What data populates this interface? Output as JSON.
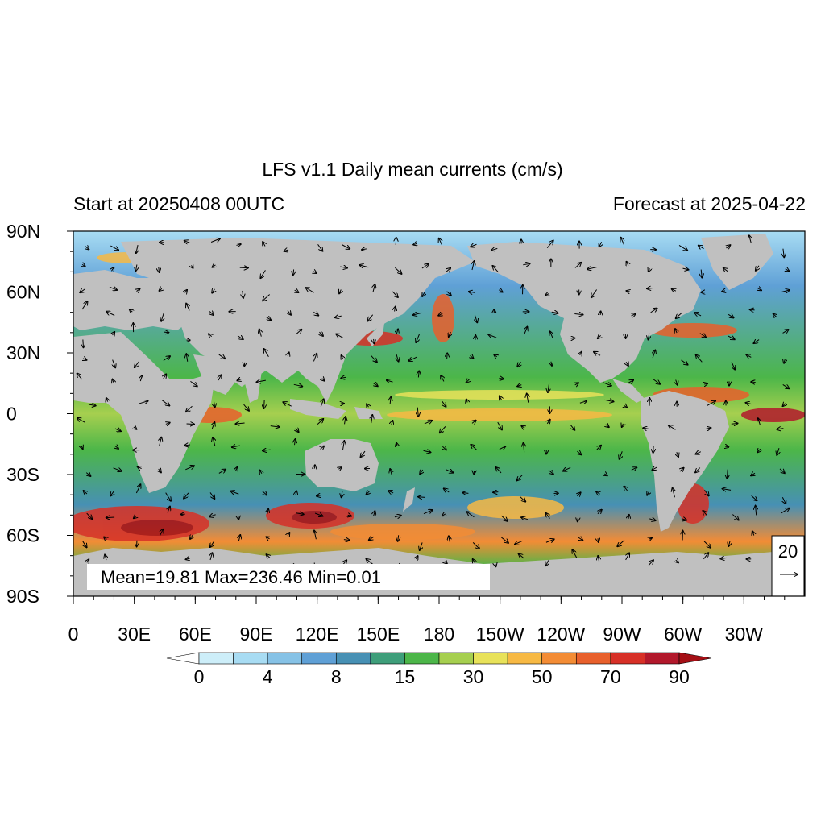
{
  "title": "LFS v1.1 Daily mean currents (cm/s)",
  "start_label": "Start at 20250408 00UTC",
  "forecast_label": "Forecast at 2025-04-22",
  "stats": {
    "text": "Mean=19.81  Max=236.46  Min=0.01"
  },
  "reference_vector": {
    "value": "20"
  },
  "lat_labels": [
    "90N",
    "60N",
    "30N",
    "0",
    "30S",
    "60S",
    "90S"
  ],
  "lon_labels": [
    "0",
    "30E",
    "60E",
    "90E",
    "120E",
    "150E",
    "180",
    "150W",
    "120W",
    "90W",
    "60W",
    "30W"
  ],
  "colorbar": {
    "tick_labels": [
      "0",
      "4",
      "8",
      "15",
      "30",
      "50",
      "70",
      "90"
    ],
    "colors": [
      "#ffffff",
      "#cdeef9",
      "#a8dcf3",
      "#86c2e6",
      "#5fa0d6",
      "#4790b4",
      "#3e9e7a",
      "#4cb649",
      "#a6cf4f",
      "#e8e25a",
      "#f7b944",
      "#f38c35",
      "#e8602c",
      "#d73027",
      "#b2182b",
      "#a50f15"
    ]
  },
  "colors": {
    "land": "#c0c0c0",
    "ocean_low": "#5fa0d6",
    "ocean_mid": "#4cb649",
    "ocean_high": "#d73027"
  }
}
